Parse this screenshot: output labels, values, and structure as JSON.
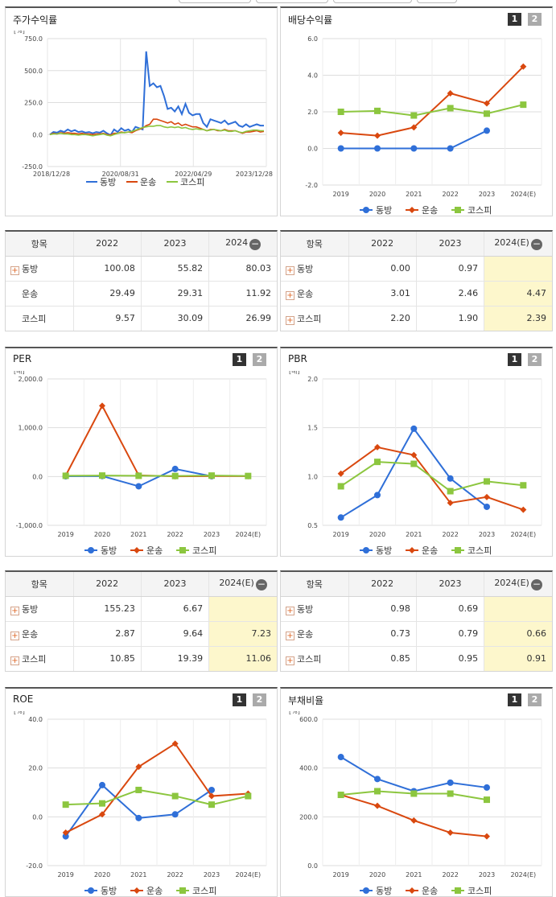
{
  "colors": {
    "dongbang": "#2f6fd8",
    "unsong": "#d9480f",
    "kospi": "#8cc63f",
    "grid": "#cccccc",
    "axis": "#666666"
  },
  "legend": [
    "동방",
    "운송",
    "코스피"
  ],
  "panels": {
    "stock": {
      "title": "주가수익률",
      "unit": "[%]"
    },
    "dividend": {
      "title": "배당수익률",
      "page1": "1",
      "page2": "2"
    },
    "per": {
      "title": "PER",
      "unit": "[배]",
      "page1": "1",
      "page2": "2"
    },
    "pbr": {
      "title": "PBR",
      "unit": "[배]",
      "page1": "1",
      "page2": "2"
    },
    "roe": {
      "title": "ROE",
      "unit": "[%]",
      "page1": "1",
      "page2": "2"
    },
    "debt": {
      "title": "부채비율",
      "unit": "[%]",
      "page1": "1",
      "page2": "2"
    }
  },
  "tables": {
    "stock": {
      "headers": [
        "항목",
        "2022",
        "2023",
        "2024"
      ],
      "rows": [
        {
          "name": "동방",
          "plus": true,
          "values": [
            "100.08",
            "55.82",
            "80.03"
          ]
        },
        {
          "name": "운송",
          "plus": false,
          "values": [
            "29.49",
            "29.31",
            "11.92"
          ]
        },
        {
          "name": "코스피",
          "plus": false,
          "values": [
            "9.57",
            "30.09",
            "26.99"
          ]
        }
      ]
    },
    "dividend": {
      "headers": [
        "항목",
        "2022",
        "2023",
        "2024(E)"
      ],
      "rows": [
        {
          "name": "동방",
          "plus": true,
          "values": [
            "0.00",
            "0.97",
            ""
          ]
        },
        {
          "name": "운송",
          "plus": true,
          "values": [
            "3.01",
            "2.46",
            "4.47"
          ]
        },
        {
          "name": "코스피",
          "plus": true,
          "values": [
            "2.20",
            "1.90",
            "2.39"
          ]
        }
      ]
    },
    "per": {
      "headers": [
        "항목",
        "2022",
        "2023",
        "2024(E)"
      ],
      "rows": [
        {
          "name": "동방",
          "plus": true,
          "values": [
            "155.23",
            "6.67",
            ""
          ]
        },
        {
          "name": "운송",
          "plus": true,
          "values": [
            "2.87",
            "9.64",
            "7.23"
          ]
        },
        {
          "name": "코스피",
          "plus": true,
          "values": [
            "10.85",
            "19.39",
            "11.06"
          ]
        }
      ]
    },
    "pbr": {
      "headers": [
        "항목",
        "2022",
        "2023",
        "2024(E)"
      ],
      "rows": [
        {
          "name": "동방",
          "plus": true,
          "values": [
            "0.98",
            "0.69",
            ""
          ]
        },
        {
          "name": "운송",
          "plus": true,
          "values": [
            "0.73",
            "0.79",
            "0.66"
          ]
        },
        {
          "name": "코스피",
          "plus": true,
          "values": [
            "0.85",
            "0.95",
            "0.91"
          ]
        }
      ]
    }
  },
  "chart_data": [
    {
      "id": "stock",
      "type": "line",
      "title": "주가수익률",
      "ylabel": "[%]",
      "ylim": [
        -250,
        750
      ],
      "yticks": [
        "750.0",
        "500.0",
        "250.0",
        "0.0",
        "-250.0"
      ],
      "xticks": [
        "2018/12/28",
        "2020/08/31",
        "2022/04/29",
        "2023/12/28"
      ],
      "series": [
        {
          "name": "동방",
          "x": [
            0,
            1,
            2,
            3,
            4,
            5,
            6,
            7,
            8,
            9,
            10,
            11,
            12,
            13,
            14,
            15,
            16,
            17,
            18,
            19,
            20,
            21,
            22,
            23,
            24,
            25,
            26,
            27,
            28,
            29,
            30,
            31,
            32,
            33,
            34,
            35,
            36,
            37,
            38,
            39,
            40,
            41,
            42,
            43,
            44,
            45,
            46,
            47,
            48,
            49,
            50,
            51,
            52,
            53,
            54,
            55,
            56,
            57,
            58,
            59,
            60
          ],
          "values": [
            0,
            20,
            15,
            30,
            20,
            40,
            25,
            35,
            20,
            25,
            15,
            20,
            10,
            20,
            15,
            30,
            10,
            -5,
            40,
            20,
            50,
            30,
            40,
            20,
            60,
            50,
            40,
            650,
            380,
            400,
            370,
            380,
            300,
            200,
            210,
            180,
            220,
            160,
            240,
            170,
            150,
            160,
            160,
            90,
            60,
            120,
            110,
            100,
            90,
            110,
            80,
            90,
            100,
            70,
            60,
            80,
            60,
            70,
            80,
            70,
            70
          ]
        },
        {
          "name": "운송",
          "x": [
            0,
            1,
            2,
            3,
            4,
            5,
            6,
            7,
            8,
            9,
            10,
            11,
            12,
            13,
            14,
            15,
            16,
            17,
            18,
            19,
            20,
            21,
            22,
            23,
            24,
            25,
            26,
            27,
            28,
            29,
            30,
            31,
            32,
            33,
            34,
            35,
            36,
            37,
            38,
            39,
            40,
            41,
            42,
            43,
            44,
            45,
            46,
            47,
            48,
            49,
            50,
            51,
            52,
            53,
            54,
            55,
            56,
            57,
            58,
            59,
            60
          ],
          "values": [
            0,
            10,
            5,
            15,
            10,
            15,
            10,
            10,
            5,
            10,
            5,
            5,
            0,
            5,
            5,
            10,
            0,
            -5,
            10,
            10,
            20,
            15,
            20,
            15,
            30,
            40,
            50,
            70,
            80,
            120,
            120,
            110,
            100,
            90,
            100,
            80,
            90,
            70,
            80,
            70,
            60,
            60,
            50,
            40,
            30,
            40,
            40,
            30,
            30,
            40,
            30,
            30,
            30,
            20,
            10,
            20,
            20,
            25,
            30,
            20,
            25
          ]
        },
        {
          "name": "코스피",
          "x": [
            0,
            1,
            2,
            3,
            4,
            5,
            6,
            7,
            8,
            9,
            10,
            11,
            12,
            13,
            14,
            15,
            16,
            17,
            18,
            19,
            20,
            21,
            22,
            23,
            24,
            25,
            26,
            27,
            28,
            29,
            30,
            31,
            32,
            33,
            34,
            35,
            36,
            37,
            38,
            39,
            40,
            41,
            42,
            43,
            44,
            45,
            46,
            47,
            48,
            49,
            50,
            51,
            52,
            53,
            54,
            55,
            56,
            57,
            58,
            59,
            60
          ],
          "values": [
            0,
            5,
            5,
            10,
            5,
            5,
            0,
            0,
            -5,
            0,
            0,
            -5,
            -10,
            -5,
            0,
            5,
            -5,
            -10,
            0,
            10,
            15,
            15,
            20,
            25,
            35,
            45,
            55,
            60,
            65,
            65,
            70,
            70,
            60,
            55,
            60,
            55,
            60,
            50,
            55,
            45,
            40,
            45,
            40,
            40,
            30,
            35,
            40,
            35,
            30,
            35,
            25,
            25,
            30,
            20,
            15,
            25,
            30,
            35,
            35,
            30,
            30
          ]
        }
      ]
    },
    {
      "id": "dividend",
      "type": "line",
      "title": "배당수익률",
      "ylim": [
        -2,
        6
      ],
      "yticks": [
        "6.0",
        "4.0",
        "2.0",
        "0.0",
        "-2.0"
      ],
      "categories": [
        "2019",
        "2020",
        "2021",
        "2022",
        "2023",
        "2024(E)"
      ],
      "series": [
        {
          "name": "동방",
          "values": [
            0.0,
            0.0,
            0.0,
            0.0,
            0.97,
            null
          ]
        },
        {
          "name": "운송",
          "values": [
            0.85,
            0.7,
            1.15,
            3.01,
            2.46,
            4.47
          ]
        },
        {
          "name": "코스피",
          "values": [
            2.0,
            2.05,
            1.8,
            2.2,
            1.9,
            2.39
          ]
        }
      ]
    },
    {
      "id": "per",
      "type": "line",
      "title": "PER",
      "ylabel": "[배]",
      "ylim": [
        -1000,
        2000
      ],
      "yticks": [
        "2,000.0",
        "1,000.0",
        "0.0",
        "-1,000.0"
      ],
      "categories": [
        "2019",
        "2020",
        "2021",
        "2022",
        "2023",
        "2024(E)"
      ],
      "series": [
        {
          "name": "동방",
          "values": [
            5,
            10,
            -200,
            155.23,
            6.67,
            null
          ]
        },
        {
          "name": "운송",
          "values": [
            20,
            1450,
            25,
            2.87,
            9.64,
            7.23
          ]
        },
        {
          "name": "코스피",
          "values": [
            15,
            20,
            15,
            10.85,
            19.39,
            11.06
          ]
        }
      ]
    },
    {
      "id": "pbr",
      "type": "line",
      "title": "PBR",
      "ylabel": "[배]",
      "ylim": [
        0.5,
        2.0
      ],
      "yticks": [
        "2.0",
        "1.5",
        "1.0",
        "0.5"
      ],
      "categories": [
        "2019",
        "2020",
        "2021",
        "2022",
        "2023",
        "2024(E)"
      ],
      "series": [
        {
          "name": "동방",
          "values": [
            0.58,
            0.81,
            1.49,
            0.98,
            0.69,
            null
          ]
        },
        {
          "name": "운송",
          "values": [
            1.03,
            1.3,
            1.22,
            0.73,
            0.79,
            0.66
          ]
        },
        {
          "name": "코스피",
          "values": [
            0.9,
            1.15,
            1.13,
            0.85,
            0.95,
            0.91
          ]
        }
      ]
    },
    {
      "id": "roe",
      "type": "line",
      "title": "ROE",
      "ylabel": "[%]",
      "ylim": [
        -20,
        40
      ],
      "yticks": [
        "40.0",
        "20.0",
        "0.0",
        "-20.0"
      ],
      "categories": [
        "2019",
        "2020",
        "2021",
        "2022",
        "2023",
        "2024(E)"
      ],
      "series": [
        {
          "name": "동방",
          "values": [
            -8,
            13,
            -0.5,
            1,
            11,
            null
          ]
        },
        {
          "name": "운송",
          "values": [
            -6.5,
            1,
            20.5,
            30,
            8.5,
            9.5
          ]
        },
        {
          "name": "코스피",
          "values": [
            5,
            5.5,
            11,
            8.5,
            5,
            8.5
          ]
        }
      ]
    },
    {
      "id": "debt",
      "type": "line",
      "title": "부채비율",
      "ylabel": "[%]",
      "ylim": [
        0,
        600
      ],
      "yticks": [
        "600.0",
        "400.0",
        "200.0",
        "0.0"
      ],
      "categories": [
        "2019",
        "2020",
        "2021",
        "2022",
        "2023",
        "2024(E)"
      ],
      "series": [
        {
          "name": "동방",
          "values": [
            445,
            355,
            305,
            340,
            320,
            null
          ]
        },
        {
          "name": "운송",
          "values": [
            290,
            245,
            185,
            135,
            120,
            null
          ]
        },
        {
          "name": "코스피",
          "values": [
            290,
            305,
            295,
            295,
            270,
            null
          ]
        }
      ]
    }
  ]
}
